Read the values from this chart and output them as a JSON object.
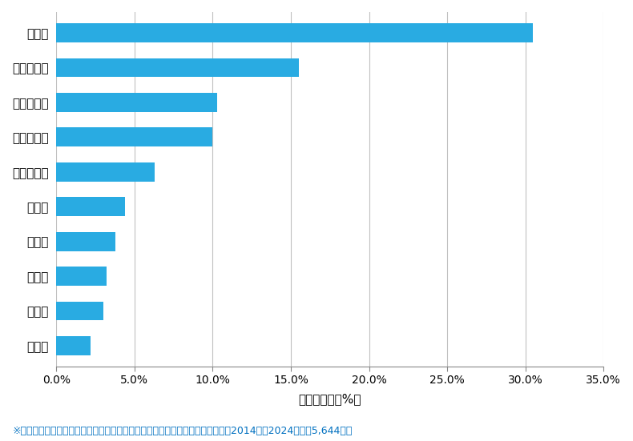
{
  "categories": [
    "倉敷市",
    "岡山市北区",
    "岡山市中区",
    "岡山市南区",
    "岡山市東区",
    "津山市",
    "総社市",
    "赤磐市",
    "玉野市",
    "笠岡市"
  ],
  "values": [
    30.5,
    15.5,
    10.3,
    10.0,
    6.3,
    4.4,
    3.8,
    3.2,
    3.0,
    2.2
  ],
  "bar_color": "#29ABE2",
  "xlabel": "件数の割合（%）",
  "xlim": [
    0,
    35
  ],
  "xtick_values": [
    0,
    5,
    10,
    15,
    20,
    25,
    30,
    35
  ],
  "xtick_labels": [
    "0.0%",
    "5.0%",
    "10.0%",
    "15.0%",
    "20.0%",
    "25.0%",
    "30.0%",
    "35.0%"
  ],
  "footnote": "※弊社受付の案件を対象に、受付時に市区町村の回答があったものを集計（期間2014年～2024年、計5,644件）",
  "footnote_color": "#0070C0",
  "background_color": "#FFFFFF",
  "bar_height": 0.55,
  "label_fontsize": 11,
  "xlabel_fontsize": 11,
  "tick_fontsize": 10,
  "footnote_fontsize": 9
}
